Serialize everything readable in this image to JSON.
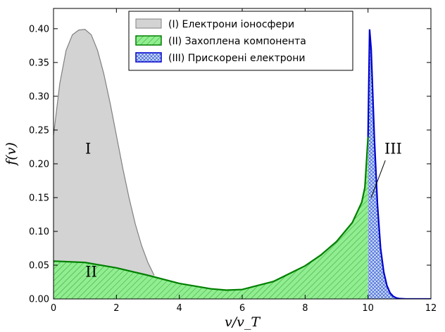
{
  "chart_data": {
    "type": "area",
    "xlabel": "v/v_T",
    "ylabel": "f(v)",
    "xlim": [
      0,
      12
    ],
    "ylim": [
      0,
      0.43
    ],
    "xticks": [
      "0",
      "2",
      "4",
      "6",
      "8",
      "10",
      "12"
    ],
    "yticks": [
      "0.00",
      "0.05",
      "0.10",
      "0.15",
      "0.20",
      "0.25",
      "0.30",
      "0.35",
      "0.40"
    ],
    "legend_position": "top-center",
    "series": [
      {
        "name": "(I)   Електрони іоносфери",
        "region_label": "I",
        "fill": "#d3d3d3",
        "stroke": "#808080",
        "hatch": "none",
        "x": [
          0,
          0.2,
          0.4,
          0.6,
          0.8,
          1.0,
          1.2,
          1.4,
          1.6,
          1.8,
          2.0,
          2.2,
          2.4,
          2.6,
          2.8,
          3.0,
          3.2
        ],
        "values": [
          0.242,
          0.319,
          0.368,
          0.391,
          0.398,
          0.399,
          0.391,
          0.368,
          0.333,
          0.29,
          0.242,
          0.194,
          0.15,
          0.111,
          0.079,
          0.054,
          0.035
        ]
      },
      {
        "name": "(II)  Захоплена компонента",
        "region_label": "II",
        "fill": "#90ee90",
        "stroke": "#008000",
        "hatch": "diagonal",
        "x": [
          0,
          1,
          2,
          3,
          4,
          5,
          5.5,
          6,
          7,
          8,
          8.5,
          9,
          9.5,
          9.8,
          9.9,
          10.0
        ],
        "values": [
          0.056,
          0.054,
          0.046,
          0.035,
          0.023,
          0.015,
          0.013,
          0.014,
          0.026,
          0.049,
          0.065,
          0.085,
          0.113,
          0.143,
          0.165,
          0.24
        ]
      },
      {
        "name": "(III) Прискорені електрони",
        "region_label": "III",
        "fill": "#aec6f0",
        "stroke": "#0000cd",
        "hatch": "crosshatch",
        "x": [
          10.0,
          10.05,
          10.1,
          10.2,
          10.3,
          10.4,
          10.5,
          10.6,
          10.7,
          10.8,
          10.9,
          11.0,
          11.2,
          11.5,
          12.0
        ],
        "values": [
          0.24,
          0.399,
          0.37,
          0.24,
          0.14,
          0.075,
          0.04,
          0.02,
          0.009,
          0.004,
          0.0015,
          0.0005,
          0.0,
          0.0,
          0.0
        ]
      }
    ]
  }
}
